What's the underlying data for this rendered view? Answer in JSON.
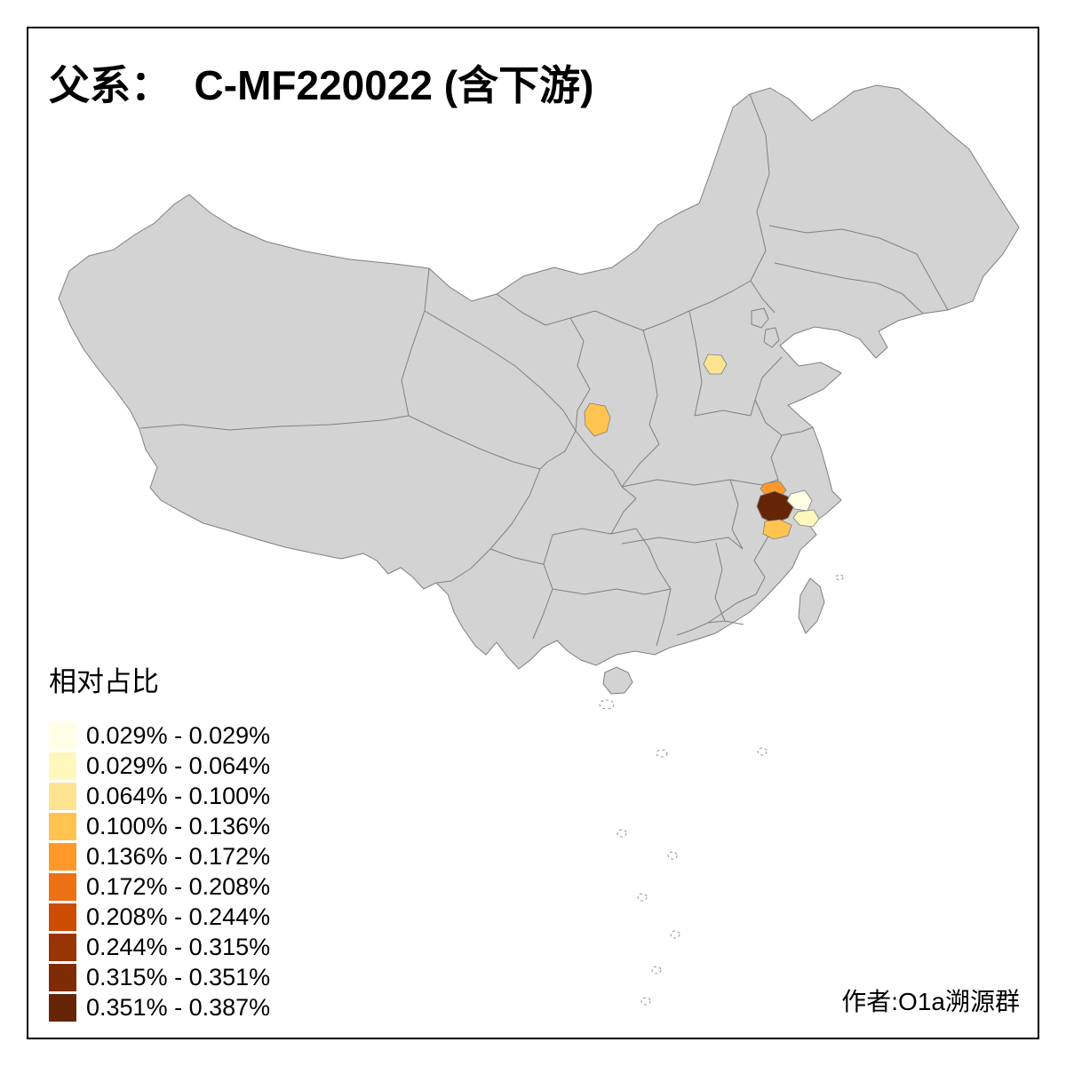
{
  "title": "父系：  C-MF220022 (含下游)",
  "author": "作者:O1a溯源群",
  "legend": {
    "title": "相对占比",
    "entries": [
      {
        "label": "0.029% - 0.029%",
        "color": "#FFFFE5"
      },
      {
        "label": "0.029% - 0.064%",
        "color": "#FFF7BC"
      },
      {
        "label": "0.064% - 0.100%",
        "color": "#FEE391"
      },
      {
        "label": "0.100% - 0.136%",
        "color": "#FEC44F"
      },
      {
        "label": "0.136% - 0.172%",
        "color": "#FE9929"
      },
      {
        "label": "0.172% - 0.208%",
        "color": "#EC7014"
      },
      {
        "label": "0.208% - 0.244%",
        "color": "#CC4C02"
      },
      {
        "label": "0.244% - 0.315%",
        "color": "#993404"
      },
      {
        "label": "0.315% - 0.351%",
        "color": "#7E2C05"
      },
      {
        "label": "0.351% - 0.387%",
        "color": "#662506"
      }
    ]
  },
  "map": {
    "land_color": "#D3D3D3",
    "border_color": "#7F7F7F",
    "sea_color": "#FFFFFF",
    "regions": [
      {
        "id": "west-shandong-patch",
        "color": "#FEE391",
        "bin": "0.064% - 0.100%"
      },
      {
        "id": "central-shaanxi-patch",
        "color": "#FEC44F",
        "bin": "0.100% - 0.136%"
      },
      {
        "id": "north-anhui-patch",
        "color": "#FE9929",
        "bin": "0.136% - 0.172%"
      },
      {
        "id": "anhui-jiangsu-dark-patch",
        "color": "#662506",
        "bin": "0.351% - 0.387%"
      },
      {
        "id": "south-anhui-patch",
        "color": "#FEC44F",
        "bin": "0.100% - 0.136%"
      },
      {
        "id": "south-jiangsu-patch",
        "color": "#FFFFE5",
        "bin": "0.029% - 0.029%"
      },
      {
        "id": "north-zhejiang-patch",
        "color": "#FFF7BC",
        "bin": "0.029% - 0.064%"
      }
    ]
  },
  "chart_data": {
    "type": "heatmap",
    "title": "父系：  C-MF220022 (含下游)",
    "legend_title": "相对占比",
    "bins": [
      "0.029% - 0.029%",
      "0.029% - 0.064%",
      "0.064% - 0.100%",
      "0.100% - 0.136%",
      "0.136% - 0.172%",
      "0.172% - 0.208%",
      "0.208% - 0.244%",
      "0.244% - 0.315%",
      "0.315% - 0.351%",
      "0.351% - 0.387%"
    ],
    "palette": [
      "#FFFFE5",
      "#FFF7BC",
      "#FEE391",
      "#FEC44F",
      "#FE9929",
      "#EC7014",
      "#CC4C02",
      "#993404",
      "#7E2C05",
      "#662506"
    ],
    "colored_regions": [
      {
        "id": "west-shandong-patch",
        "value_bin": "0.064% - 0.100%"
      },
      {
        "id": "central-shaanxi-patch",
        "value_bin": "0.100% - 0.136%"
      },
      {
        "id": "north-anhui-patch",
        "value_bin": "0.136% - 0.172%"
      },
      {
        "id": "anhui-jiangsu-dark-patch",
        "value_bin": "0.351% - 0.387%"
      },
      {
        "id": "south-anhui-patch",
        "value_bin": "0.100% - 0.136%"
      },
      {
        "id": "south-jiangsu-patch",
        "value_bin": "0.029% - 0.029%"
      },
      {
        "id": "north-zhejiang-patch",
        "value_bin": "0.029% - 0.064%"
      }
    ]
  }
}
